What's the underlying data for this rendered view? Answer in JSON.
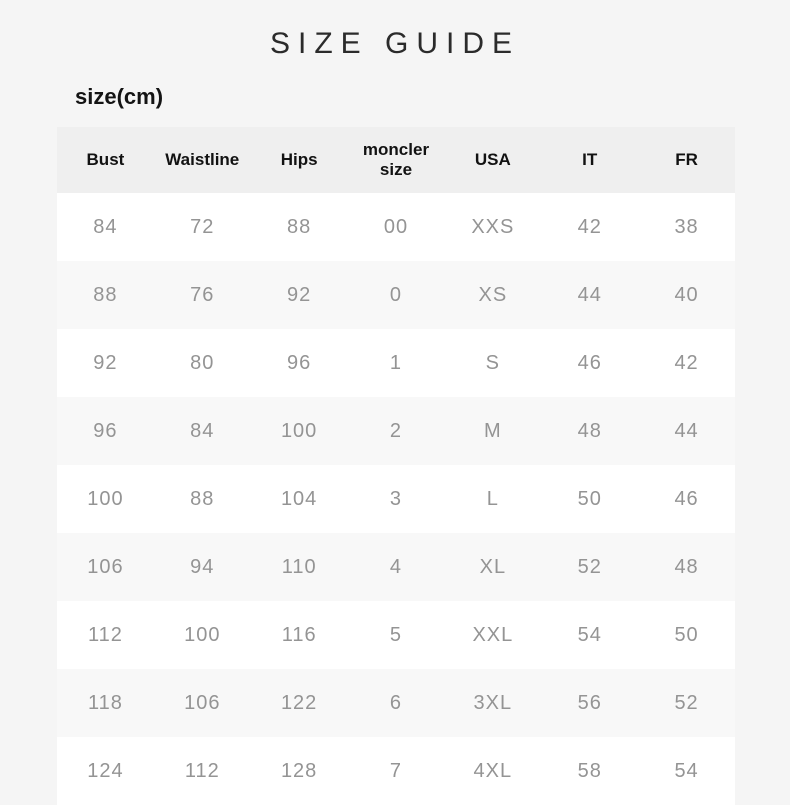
{
  "page": {
    "title": "SIZE GUIDE",
    "subtitle": "size(cm)"
  },
  "table": {
    "columns": [
      "Bust",
      "Waistline",
      "Hips",
      "moncler size",
      "USA",
      "IT",
      "FR"
    ],
    "rows": [
      [
        "84",
        "72",
        "88",
        "00",
        "XXS",
        "42",
        "38"
      ],
      [
        "88",
        "76",
        "92",
        "0",
        "XS",
        "44",
        "40"
      ],
      [
        "92",
        "80",
        "96",
        "1",
        "S",
        "46",
        "42"
      ],
      [
        "96",
        "84",
        "100",
        "2",
        "M",
        "48",
        "44"
      ],
      [
        "100",
        "88",
        "104",
        "3",
        "L",
        "50",
        "46"
      ],
      [
        "106",
        "94",
        "110",
        "4",
        "XL",
        "52",
        "48"
      ],
      [
        "112",
        "100",
        "116",
        "5",
        "XXL",
        "54",
        "50"
      ],
      [
        "118",
        "106",
        "122",
        "6",
        "3XL",
        "56",
        "52"
      ],
      [
        "124",
        "112",
        "128",
        "7",
        "4XL",
        "58",
        "54"
      ]
    ]
  },
  "colors": {
    "page_bg": "#f5f5f5",
    "header_bg": "#efefef",
    "row_odd_bg": "#ffffff",
    "row_even_bg": "#f8f8f8",
    "title_color": "#2b2b2b",
    "header_text": "#121212",
    "cell_text": "#949494"
  }
}
